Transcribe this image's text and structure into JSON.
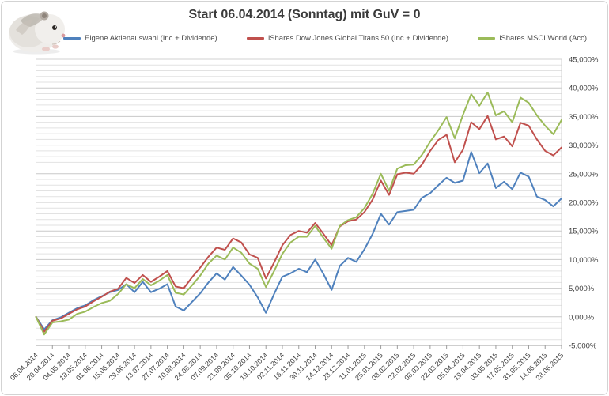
{
  "chart_data": {
    "type": "line",
    "title": "Start 06.04.2014 (Sonntag) mit GuV = 0",
    "grid": true,
    "legend_position": "top",
    "y_axis_side": "right",
    "ylim": [
      -5,
      45
    ],
    "y_major_step": 5,
    "y_minor_step": 1,
    "y_tick_labels": [
      "-5,000%",
      "0,000%",
      "5,000%",
      "10,000%",
      "15,000%",
      "20,000%",
      "25,000%",
      "30,000%",
      "35,000%",
      "40,000%",
      "45,000%"
    ],
    "x_points_per_tick": 2,
    "x_tick_labels": [
      "06.04.2014",
      "20.04.2014",
      "04.05.2014",
      "18.05.2014",
      "01.06.2014",
      "15.06.2014",
      "29.06.2014",
      "13.07.2014",
      "27.07.2014",
      "10.08.2014",
      "24.08.2014",
      "07.09.2014",
      "21.09.2014",
      "05.10.2014",
      "19.10.2014",
      "02.11.2014",
      "16.11.2014",
      "30.11.2014",
      "14.12.2014",
      "28.12.2014",
      "11.01.2015",
      "25.01.2015",
      "08.02.2015",
      "22.02.2015",
      "08.03.2015",
      "22.03.2015",
      "05.04.2015",
      "19.04.2015",
      "03.05.2015",
      "17.05.2015",
      "31.05.2015",
      "14.06.2015",
      "28.06.2015"
    ],
    "x_unit": "weekly",
    "series": [
      {
        "name": "Eigene Aktienauswahl (Inc + Dividende)",
        "color": "#4F81BD",
        "values": [
          0.0,
          -2.2,
          -0.6,
          -0.1,
          0.7,
          1.5,
          2.0,
          2.9,
          3.6,
          4.3,
          4.7,
          5.7,
          4.3,
          6.1,
          4.3,
          4.9,
          5.7,
          1.8,
          1.1,
          2.6,
          4.1,
          6.0,
          7.6,
          6.5,
          8.7,
          7.2,
          5.6,
          3.4,
          0.7,
          4.0,
          7.0,
          7.6,
          8.4,
          7.8,
          10.0,
          7.5,
          4.7,
          8.9,
          10.3,
          9.6,
          11.8,
          14.5,
          18.0,
          16.1,
          18.3,
          18.5,
          18.7,
          20.8,
          21.6,
          23.0,
          24.3,
          23.4,
          23.8,
          28.8,
          25.1,
          26.8,
          22.5,
          23.6,
          22.3,
          25.2,
          24.5,
          21.0,
          20.4,
          19.3,
          20.7
        ]
      },
      {
        "name": "iShares Dow Jones Global Titans 50 (Inc + Dividende)",
        "color": "#C0504D",
        "values": [
          0.0,
          -2.6,
          -0.7,
          -0.3,
          0.5,
          1.3,
          1.8,
          2.7,
          3.5,
          4.4,
          4.9,
          6.8,
          5.9,
          7.3,
          6.1,
          7.0,
          8.0,
          5.3,
          5.0,
          6.9,
          8.6,
          10.5,
          12.1,
          11.7,
          13.7,
          13.0,
          10.9,
          10.3,
          6.7,
          9.5,
          12.5,
          14.3,
          15.0,
          14.7,
          16.4,
          14.5,
          12.5,
          15.8,
          16.7,
          17.0,
          18.3,
          20.5,
          23.8,
          21.3,
          24.9,
          25.2,
          25.0,
          26.6,
          29.0,
          30.9,
          31.8,
          27.0,
          29.2,
          34.0,
          32.8,
          35.1,
          31.0,
          31.5,
          29.8,
          33.9,
          33.4,
          31.0,
          29.0,
          28.2,
          29.6
        ]
      },
      {
        "name": "iShares MSCI World (Acc)",
        "color": "#9BBB59",
        "values": [
          0.0,
          -3.1,
          -1.0,
          -0.8,
          -0.5,
          0.5,
          0.9,
          1.7,
          2.4,
          2.8,
          4.0,
          5.7,
          5.0,
          6.6,
          5.5,
          6.3,
          7.3,
          4.2,
          3.9,
          5.5,
          7.2,
          9.3,
          10.7,
          10.0,
          12.1,
          11.2,
          9.3,
          8.4,
          5.2,
          8.0,
          11.0,
          13.0,
          14.0,
          14.0,
          15.9,
          13.8,
          11.9,
          15.9,
          16.9,
          17.4,
          19.0,
          21.5,
          25.0,
          22.0,
          25.9,
          26.5,
          26.6,
          28.3,
          30.6,
          32.6,
          34.9,
          31.2,
          35.3,
          38.9,
          36.9,
          39.2,
          35.2,
          35.9,
          34.0,
          38.3,
          37.4,
          35.2,
          33.4,
          31.9,
          34.4
        ]
      }
    ]
  },
  "icons": {
    "hamster": "hamster-photo"
  }
}
